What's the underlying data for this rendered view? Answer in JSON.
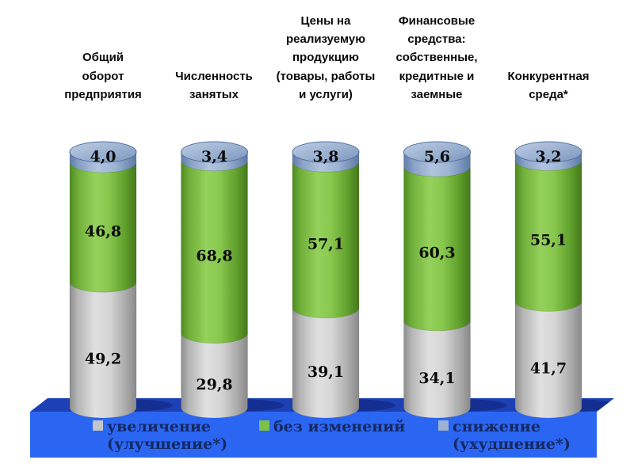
{
  "chart_data": {
    "type": "bar",
    "subtype": "3d-cylinder-stacked-100-percent",
    "orientation": "vertical",
    "grid": false,
    "axes_visible": false,
    "value_format": "decimal-comma",
    "categories": [
      "Общий\nоборот\nпредприятия",
      "Численность\nзанятых",
      "Цены на\nреализуемую\nпродукцию\n(товары, работы\nи услуги)",
      "Финансовые\nсредства:\nсобственные,\nкредитные и\nзаемные",
      "Конкурентная\nсреда*"
    ],
    "series": [
      {
        "name": "увеличение (улучшение*)",
        "stack_position": "bottom",
        "color": "#C9C9C9",
        "values": [
          49.2,
          29.8,
          39.1,
          34.1,
          41.7
        ]
      },
      {
        "name": "без изменений",
        "stack_position": "middle",
        "color": "#7DC04A",
        "values": [
          46.8,
          68.8,
          57.1,
          60.3,
          55.1
        ]
      },
      {
        "name": "снижение (ухудшение*)",
        "stack_position": "top",
        "color": "#9CB2D2",
        "values": [
          4.0,
          3.4,
          3.8,
          5.6,
          3.2
        ]
      }
    ],
    "legend": {
      "position": "bottom",
      "background_color": "#2B66F3",
      "text_color": "#152862",
      "items": [
        {
          "line1": "увеличение",
          "line2": "(улучшение*)",
          "color": "#C2C6CA"
        },
        {
          "line1": "без изменений",
          "line2": "",
          "color": "#7DC04A"
        },
        {
          "line1": "снижение",
          "line2": "(ухудшение*)",
          "color": "#9CB2D2"
        }
      ]
    },
    "platform": {
      "top_color": "#1D41B4",
      "front_color": "#2B66F3",
      "shadow_color": "#142E91"
    },
    "label_color": "#0b0b0b"
  }
}
